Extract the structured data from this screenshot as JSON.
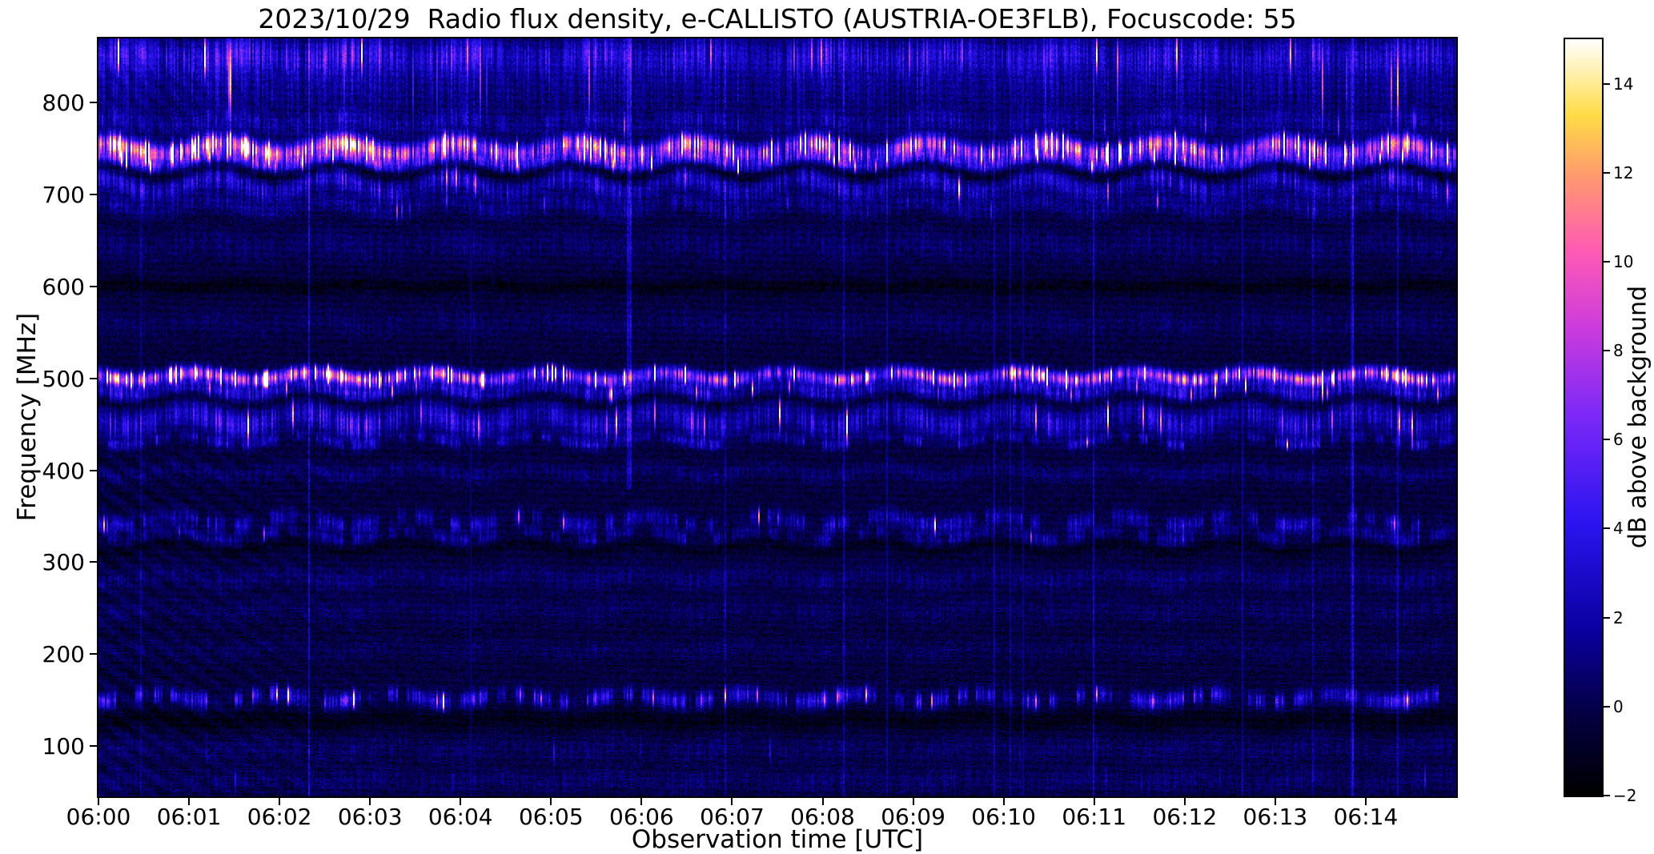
{
  "figure": {
    "background": "#ffffff",
    "frame_color": "#000000"
  },
  "chart_data": {
    "type": "heatmap",
    "title": "2023/10/29  Radio flux density, e-CALLISTO (AUSTRIA-OE3FLB), Focuscode: 55",
    "date": "2023/10/29",
    "instrument": "e-CALLISTO",
    "station": "AUSTRIA-OE3FLB",
    "focuscode": "55",
    "xlabel": "Observation time [UTC]",
    "ylabel": "Frequency [MHz]",
    "x_tick_labels": [
      "06:00",
      "06:01",
      "06:02",
      "06:03",
      "06:04",
      "06:05",
      "06:06",
      "06:07",
      "06:08",
      "06:09",
      "06:10",
      "06:11",
      "06:12",
      "06:13",
      "06:14"
    ],
    "x_range": {
      "start": "06:00",
      "end": "06:15",
      "span_s": 900
    },
    "y_ticks": [
      100,
      200,
      300,
      400,
      500,
      600,
      700,
      800
    ],
    "y_range_mhz": [
      45,
      870
    ],
    "grid": false,
    "colorbar": {
      "label": "dB above background",
      "ticks": [
        -2,
        0,
        2,
        4,
        6,
        8,
        10,
        12,
        14
      ],
      "tick_labels": [
        "−2",
        "0",
        "2",
        "4",
        "6",
        "8",
        "10",
        "12",
        "14"
      ],
      "vmin": -2,
      "vmax": 15
    },
    "colormap_name": "black-blue-magenta-yellow-white (gnuplot2-like)",
    "colormap_stops": [
      {
        "pos": 0.0,
        "color": "#000000"
      },
      {
        "pos": 0.1,
        "color": "#03003c"
      },
      {
        "pos": 0.22,
        "color": "#0a00a0"
      },
      {
        "pos": 0.36,
        "color": "#2b14f0"
      },
      {
        "pos": 0.5,
        "color": "#7a28f8"
      },
      {
        "pos": 0.62,
        "color": "#cc3cdc"
      },
      {
        "pos": 0.72,
        "color": "#ff5ab4"
      },
      {
        "pos": 0.82,
        "color": "#ff9a6e"
      },
      {
        "pos": 0.9,
        "color": "#ffdc46"
      },
      {
        "pos": 1.0,
        "color": "#ffffff"
      }
    ],
    "background_level_db": -0.35,
    "emission_bands": [
      {
        "center_mhz": 852,
        "sigma_mhz": 14,
        "peak_db": 3.0,
        "wobble_mhz": 3,
        "wobble_period_s": 78,
        "phase": 0.0,
        "spike_prob": 0.02,
        "dashed": 0,
        "early_gain": 1.25,
        "late_gain": 1.0
      },
      {
        "center_mhz": 818,
        "sigma_mhz": 24,
        "peak_db": 1.7,
        "wobble_mhz": 3,
        "wobble_period_s": 78,
        "phase": 0.5,
        "spike_prob": 0.01,
        "dashed": 0,
        "early_gain": 1.1,
        "late_gain": 1.0
      },
      {
        "center_mhz": 778,
        "sigma_mhz": 8,
        "peak_db": 1.6,
        "wobble_mhz": 4,
        "wobble_period_s": 78,
        "phase": 1.0,
        "spike_prob": 0.02,
        "dashed": 0,
        "early_gain": 1.2,
        "late_gain": 1.0
      },
      {
        "center_mhz": 750,
        "sigma_mhz": 7,
        "peak_db": 8.0,
        "wobble_mhz": 6,
        "wobble_period_s": 78,
        "phase": 1.3,
        "spike_prob": 0.12,
        "dashed": 0,
        "early_gain": 1.35,
        "late_gain": 1.05
      },
      {
        "center_mhz": 736,
        "sigma_mhz": 5,
        "peak_db": 3.8,
        "wobble_mhz": 6,
        "wobble_period_s": 78,
        "phase": 1.45,
        "spike_prob": 0.05,
        "dashed": 0,
        "early_gain": 1.2,
        "late_gain": 1.0
      },
      {
        "center_mhz": 725,
        "sigma_mhz": 5,
        "peak_db": -1.3,
        "wobble_mhz": 6,
        "wobble_period_s": 78,
        "phase": 1.45,
        "spike_prob": 0,
        "dashed": 0,
        "early_gain": 1,
        "late_gain": 1
      },
      {
        "center_mhz": 711,
        "sigma_mhz": 9,
        "peak_db": 2.9,
        "wobble_mhz": 8,
        "wobble_period_s": 78,
        "phase": 1.7,
        "spike_prob": 0.03,
        "dashed": 0,
        "early_gain": 1.2,
        "late_gain": 1.0
      },
      {
        "center_mhz": 687,
        "sigma_mhz": 7,
        "peak_db": 1.5,
        "wobble_mhz": 6,
        "wobble_period_s": 78,
        "phase": 1.9,
        "spike_prob": 0.01,
        "dashed": 0,
        "early_gain": 1.0,
        "late_gain": 1.0
      },
      {
        "center_mhz": 645,
        "sigma_mhz": 12,
        "peak_db": 0.9,
        "wobble_mhz": 4,
        "wobble_period_s": 78,
        "phase": 2.2,
        "spike_prob": 0,
        "dashed": 0,
        "early_gain": 1,
        "late_gain": 1
      },
      {
        "center_mhz": 600,
        "sigma_mhz": 5,
        "peak_db": -1.1,
        "wobble_mhz": 2,
        "wobble_period_s": 78,
        "phase": 0.0,
        "spike_prob": 0,
        "dashed": 0,
        "early_gain": 1,
        "late_gain": 1
      },
      {
        "center_mhz": 560,
        "sigma_mhz": 10,
        "peak_db": 0.7,
        "wobble_mhz": 3,
        "wobble_period_s": 78,
        "phase": 2.5,
        "spike_prob": 0,
        "dashed": 0,
        "early_gain": 1,
        "late_gain": 1
      },
      {
        "center_mhz": 502,
        "sigma_mhz": 5,
        "peak_db": 7.0,
        "wobble_mhz": 4,
        "wobble_period_s": 78,
        "phase": 2.8,
        "spike_prob": 0.1,
        "dashed": 0,
        "early_gain": 1.3,
        "late_gain": 1.25
      },
      {
        "center_mhz": 487,
        "sigma_mhz": 6,
        "peak_db": 2.7,
        "wobble_mhz": 5,
        "wobble_period_s": 78,
        "phase": 3.0,
        "spike_prob": 0.03,
        "dashed": 0,
        "early_gain": 1.2,
        "late_gain": 1.1
      },
      {
        "center_mhz": 476,
        "sigma_mhz": 4,
        "peak_db": -1.0,
        "wobble_mhz": 5,
        "wobble_period_s": 78,
        "phase": 3.0,
        "spike_prob": 0,
        "dashed": 0,
        "early_gain": 1,
        "late_gain": 1
      },
      {
        "center_mhz": 455,
        "sigma_mhz": 11,
        "peak_db": 2.9,
        "wobble_mhz": 7,
        "wobble_period_s": 78,
        "phase": 3.2,
        "spike_prob": 0.03,
        "dashed": 0,
        "early_gain": 1.25,
        "late_gain": 1.0
      },
      {
        "center_mhz": 432,
        "sigma_mhz": 4,
        "peak_db": 2.1,
        "wobble_mhz": 5,
        "wobble_period_s": 78,
        "phase": 3.4,
        "spike_prob": 0.02,
        "dashed": 1,
        "early_gain": 1.0,
        "late_gain": 1.0
      },
      {
        "center_mhz": 398,
        "sigma_mhz": 6,
        "peak_db": 1.0,
        "wobble_mhz": 4,
        "wobble_period_s": 78,
        "phase": 3.6,
        "spike_prob": 0,
        "dashed": 0,
        "early_gain": 1,
        "late_gain": 1
      },
      {
        "center_mhz": 345,
        "sigma_mhz": 6,
        "peak_db": 2.5,
        "wobble_mhz": 5,
        "wobble_period_s": 78,
        "phase": 3.8,
        "spike_prob": 0.02,
        "dashed": 1,
        "early_gain": 1.0,
        "late_gain": 1.0
      },
      {
        "center_mhz": 329,
        "sigma_mhz": 5,
        "peak_db": 1.7,
        "wobble_mhz": 5,
        "wobble_period_s": 78,
        "phase": 4.0,
        "spike_prob": 0.01,
        "dashed": 1,
        "early_gain": 1,
        "late_gain": 1
      },
      {
        "center_mhz": 316,
        "sigma_mhz": 4,
        "peak_db": -0.8,
        "wobble_mhz": 5,
        "wobble_period_s": 78,
        "phase": 4.0,
        "spike_prob": 0,
        "dashed": 0,
        "early_gain": 1,
        "late_gain": 1
      },
      {
        "center_mhz": 283,
        "sigma_mhz": 8,
        "peak_db": 1.0,
        "wobble_mhz": 4,
        "wobble_period_s": 78,
        "phase": 4.2,
        "spike_prob": 0,
        "dashed": 0,
        "early_gain": 1,
        "late_gain": 1
      },
      {
        "center_mhz": 248,
        "sigma_mhz": 9,
        "peak_db": 0.7,
        "wobble_mhz": 4,
        "wobble_period_s": 78,
        "phase": 4.4,
        "spike_prob": 0,
        "dashed": 0,
        "early_gain": 1,
        "late_gain": 1
      },
      {
        "center_mhz": 205,
        "sigma_mhz": 7,
        "peak_db": 0.6,
        "wobble_mhz": 3,
        "wobble_period_s": 78,
        "phase": 4.6,
        "spike_prob": 0,
        "dashed": 0,
        "early_gain": 1,
        "late_gain": 1
      },
      {
        "center_mhz": 152,
        "sigma_mhz": 6,
        "peak_db": 3.4,
        "wobble_mhz": 4,
        "wobble_period_s": 78,
        "phase": 4.8,
        "spike_prob": 0.04,
        "dashed": 1,
        "early_gain": 1.15,
        "late_gain": 1.0
      },
      {
        "center_mhz": 128,
        "sigma_mhz": 7,
        "peak_db": -1.0,
        "wobble_mhz": 3,
        "wobble_period_s": 78,
        "phase": 5.0,
        "spike_prob": 0,
        "dashed": 0,
        "early_gain": 1,
        "late_gain": 1
      },
      {
        "center_mhz": 96,
        "sigma_mhz": 9,
        "peak_db": 0.8,
        "wobble_mhz": 3,
        "wobble_period_s": 78,
        "phase": 5.2,
        "spike_prob": 0.01,
        "dashed": 0,
        "early_gain": 1,
        "late_gain": 1
      },
      {
        "center_mhz": 62,
        "sigma_mhz": 9,
        "peak_db": 0.9,
        "wobble_mhz": 3,
        "wobble_period_s": 78,
        "phase": 5.4,
        "spike_prob": 0.01,
        "dashed": 0,
        "early_gain": 1,
        "late_gain": 1
      }
    ],
    "vertical_events": [
      {
        "time_s": 352,
        "halfwidth_s": 1.5,
        "extra_db": 2.2,
        "fmin_mhz": 380,
        "fmax_mhz": 870,
        "label": "bright vertical line near 06:05:52"
      }
    ],
    "notes": "Dense dark-blue radio spectrogram with strong vertical scintillation striping. Strongest intermittent emission bands near 750 MHz and 500 MHz (pink/orange/white spikes, brightest 06:00-06:05 and again after 06:10), moderate wavy bands near 852, 736, 711, 487, 455, 432, 345, 329 and 152 MHz (~78 s undulation period), dark lanes near 725, 600, 476, 316 and 128 MHz, curved ripple interference in the lower-left quadrant before 06:04, and a bright vertical line near 06:05:52."
  }
}
